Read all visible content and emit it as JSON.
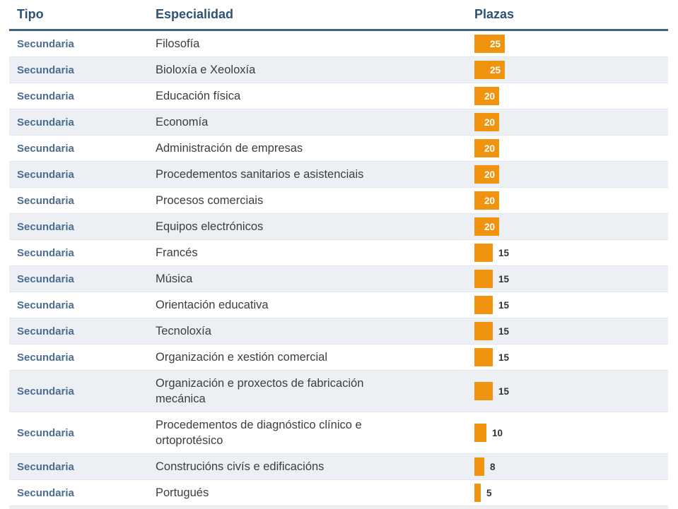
{
  "table": {
    "columns": [
      {
        "label": "Tipo"
      },
      {
        "label": "Especialidad"
      },
      {
        "label": "Plazas"
      }
    ],
    "rows": [
      {
        "tipo": "Secundaria",
        "especialidad": "Filosofía",
        "plazas": 25
      },
      {
        "tipo": "Secundaria",
        "especialidad": "Bioloxía e Xeoloxía",
        "plazas": 25
      },
      {
        "tipo": "Secundaria",
        "especialidad": "Educación física",
        "plazas": 20
      },
      {
        "tipo": "Secundaria",
        "especialidad": "Economía",
        "plazas": 20
      },
      {
        "tipo": "Secundaria",
        "especialidad": "Administración de empresas",
        "plazas": 20
      },
      {
        "tipo": "Secundaria",
        "especialidad": "Procedementos sanitarios e asistenciais",
        "plazas": 20
      },
      {
        "tipo": "Secundaria",
        "especialidad": "Procesos comerciais",
        "plazas": 20
      },
      {
        "tipo": "Secundaria",
        "especialidad": "Equipos electrónicos",
        "plazas": 20
      },
      {
        "tipo": "Secundaria",
        "especialidad": "Francés",
        "plazas": 15
      },
      {
        "tipo": "Secundaria",
        "especialidad": "Música",
        "plazas": 15
      },
      {
        "tipo": "Secundaria",
        "especialidad": "Orientación educativa",
        "plazas": 15
      },
      {
        "tipo": "Secundaria",
        "especialidad": "Tecnoloxía",
        "plazas": 15
      },
      {
        "tipo": "Secundaria",
        "especialidad": "Organización e xestión comercial",
        "plazas": 15
      },
      {
        "tipo": "Secundaria",
        "especialidad": "Organización e proxectos de fabricación\nmecánica",
        "plazas": 15
      },
      {
        "tipo": "Secundaria",
        "especialidad": "Procedementos de diagnóstico clínico e\nortoprotésico",
        "plazas": 10
      },
      {
        "tipo": "Secundaria",
        "especialidad": "Construcións civís e edificacións",
        "plazas": 8
      },
      {
        "tipo": "Secundaria",
        "especialidad": "Portugués",
        "plazas": 5
      }
    ],
    "bar_inside_label_threshold": 20
  },
  "colors": {
    "accent_orange": "#f0930e",
    "header_text": "#2e5273",
    "header_divider": "#3e628d",
    "tipo_text": "#4a6d91",
    "especialidad_text": "#3d3d3d",
    "alt_row_bg": "#eceff3",
    "bar_value_inside": "#ffffff",
    "bar_value_outside": "#333333"
  },
  "chart_data": {
    "type": "bar",
    "orientation": "horizontal",
    "categories": [
      "Filosofía",
      "Bioloxía e Xeoloxía",
      "Educación física",
      "Economía",
      "Administración de empresas",
      "Procedementos sanitarios e asistenciais",
      "Procesos comerciais",
      "Equipos electrónicos",
      "Francés",
      "Música",
      "Orientación educativa",
      "Tecnoloxía",
      "Organización e xestión comercial",
      "Organización e proxectos de fabricación mecánica",
      "Procedementos de diagnóstico clínico e ortoprotésico",
      "Construcións civís e edificacións",
      "Portugués"
    ],
    "values": [
      25,
      25,
      20,
      20,
      20,
      20,
      20,
      20,
      15,
      15,
      15,
      15,
      15,
      15,
      10,
      8,
      5
    ],
    "title": "Plazas",
    "bar_color": "#f0930e"
  }
}
